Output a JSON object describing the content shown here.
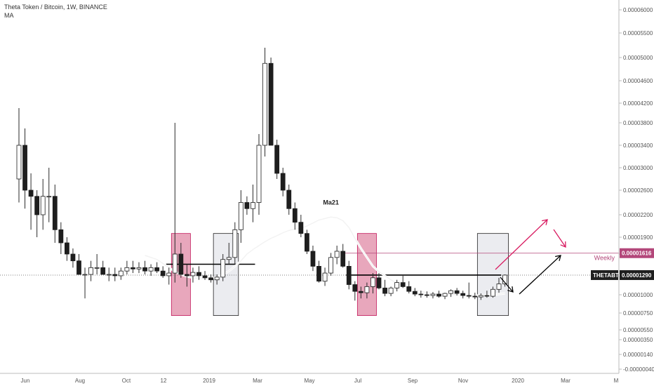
{
  "header": {
    "title": "Theta Token / Bitcoin, 1W, BINANCE",
    "indicator": "MA"
  },
  "chart_data": {
    "type": "candlestick",
    "symbol": "THETABTC",
    "interval": "1W",
    "exchange": "BINANCE",
    "y_scale": "log",
    "y_ticks": [
      "0.00006000",
      "0.00005500",
      "0.00005000",
      "0.00004600",
      "0.00004200",
      "0.00003800",
      "0.00003400",
      "0.00003000",
      "0.00002600",
      "0.00002200",
      "0.00001900",
      "0.00001600",
      "0.00001300",
      "0.00001000",
      "0.00000750",
      "0.00000550",
      "0.00000350",
      "0.00000140",
      "-0.00000040"
    ],
    "y_tick_values": [
      6e-05,
      5.5e-05,
      5e-05,
      4.6e-05,
      4.2e-05,
      3.8e-05,
      3.4e-05,
      3e-05,
      2.6e-05,
      2.2e-05,
      1.9e-05,
      1.6e-05,
      1.3e-05,
      1e-05,
      7.5e-06,
      5.5e-06,
      3.5e-06,
      1.4e-06,
      -4e-07
    ],
    "x_ticks": [
      "Jun",
      "Aug",
      "Oct",
      "12",
      "2019",
      "Mar",
      "May",
      "Jul",
      "Sep",
      "Nov",
      "2020",
      "Mar",
      "M"
    ],
    "candles": [
      [
        2.8e-05,
        4.1e-05,
        2.4e-05,
        3.4e-05
      ],
      [
        3.4e-05,
        3.7e-05,
        2.3e-05,
        2.6e-05
      ],
      [
        2.6e-05,
        2.9e-05,
        2e-05,
        2.5e-05
      ],
      [
        2.5e-05,
        2.6e-05,
        1.9e-05,
        2.2e-05
      ],
      [
        2.2e-05,
        2.8e-05,
        2e-05,
        2.5e-05
      ],
      [
        2.5e-05,
        3e-05,
        2.1e-05,
        2.5e-05
      ],
      [
        2.5e-05,
        2.7e-05,
        1.8e-05,
        2e-05
      ],
      [
        2e-05,
        2.1e-05,
        1.6e-05,
        1.8e-05
      ],
      [
        1.8e-05,
        1.9e-05,
        1.5e-05,
        1.6e-05
      ],
      [
        1.6e-05,
        1.7e-05,
        1.4e-05,
        1.5e-05
      ],
      [
        1.5e-05,
        1.6e-05,
        1.3e-05,
        1.3e-05
      ],
      [
        1.3e-05,
        1.4e-05,
        9.5e-06,
        1.3e-05
      ],
      [
        1.3e-05,
        1.5e-05,
        1.2e-05,
        1.4e-05
      ],
      [
        1.4e-05,
        1.6e-05,
        1.3e-05,
        1.4e-05
      ],
      [
        1.4e-05,
        1.5e-05,
        1.3e-05,
        1.3e-05
      ],
      [
        1.3e-05,
        1.4e-05,
        1.2e-05,
        1.3e-05
      ],
      [
        1.3e-05,
        1.4e-05,
        1.2e-05,
        1.28e-05
      ],
      [
        1.28e-05,
        1.4e-05,
        1.22e-05,
        1.35e-05
      ],
      [
        1.35e-05,
        1.5e-05,
        1.3e-05,
        1.4e-05
      ],
      [
        1.4e-05,
        1.5e-05,
        1.32e-05,
        1.38e-05
      ],
      [
        1.38e-05,
        1.48e-05,
        1.32e-05,
        1.4e-05
      ],
      [
        1.4e-05,
        1.5e-05,
        1.3e-05,
        1.35e-05
      ],
      [
        1.35e-05,
        1.45e-05,
        1.28e-05,
        1.4e-05
      ],
      [
        1.4e-05,
        1.48e-05,
        1.32e-05,
        1.35e-05
      ],
      [
        1.35e-05,
        1.42e-05,
        1.25e-05,
        1.28e-05
      ],
      [
        1.28e-05,
        1.4e-05,
        1.15e-05,
        1.32e-05
      ],
      [
        1.32e-05,
        3.8e-05,
        1.18e-05,
        1.6e-05
      ],
      [
        1.6e-05,
        1.8e-05,
        1.25e-05,
        1.3e-05
      ],
      [
        1.3e-05,
        1.45e-05,
        1.12e-05,
        1.28e-05
      ],
      [
        1.28e-05,
        1.4e-05,
        1.18e-05,
        1.33e-05
      ],
      [
        1.33e-05,
        1.42e-05,
        1.22e-05,
        1.28e-05
      ],
      [
        1.28e-05,
        1.35e-05,
        1.22e-05,
        1.25e-05
      ],
      [
        1.25e-05,
        1.3e-05,
        1.18e-05,
        1.22e-05
      ],
      [
        1.22e-05,
        1.3e-05,
        1.15e-05,
        1.26e-05
      ],
      [
        1.26e-05,
        1.6e-05,
        1.2e-05,
        1.52e-05
      ],
      [
        1.52e-05,
        1.8e-05,
        1.45e-05,
        1.55e-05
      ],
      [
        1.55e-05,
        2.1e-05,
        1.45e-05,
        2e-05
      ],
      [
        2e-05,
        2.6e-05,
        1.8e-05,
        2.4e-05
      ],
      [
        2.4e-05,
        2.5e-05,
        2.2e-05,
        2.3e-05
      ],
      [
        2.3e-05,
        2.7e-05,
        2.1e-05,
        2.4e-05
      ],
      [
        2.4e-05,
        3.6e-05,
        2.2e-05,
        3.4e-05
      ],
      [
        3.4e-05,
        5.2e-05,
        3.2e-05,
        4.9e-05
      ],
      [
        4.9e-05,
        5e-05,
        3.4e-05,
        3.4e-05
      ],
      [
        3.4e-05,
        3.5e-05,
        2.8e-05,
        2.9e-05
      ],
      [
        2.9e-05,
        3e-05,
        2.5e-05,
        2.6e-05
      ],
      [
        2.6e-05,
        2.7e-05,
        2.2e-05,
        2.3e-05
      ],
      [
        2.3e-05,
        2.4e-05,
        2e-05,
        2.1e-05
      ],
      [
        2.1e-05,
        2.2e-05,
        1.9e-05,
        1.95e-05
      ],
      [
        1.95e-05,
        2e-05,
        1.6e-05,
        1.65e-05
      ],
      [
        1.65e-05,
        1.75e-05,
        1.35e-05,
        1.42e-05
      ],
      [
        1.42e-05,
        1.5e-05,
        1.18e-05,
        1.2e-05
      ],
      [
        1.2e-05,
        1.4e-05,
        1.13e-05,
        1.32e-05
      ],
      [
        1.32e-05,
        1.62e-05,
        1.28e-05,
        1.55e-05
      ],
      [
        1.55e-05,
        1.75e-05,
        1.45e-05,
        1.65e-05
      ],
      [
        1.65e-05,
        1.78e-05,
        1.4e-05,
        1.42e-05
      ],
      [
        1.42e-05,
        1.5e-05,
        1.08e-05,
        1.15e-05
      ],
      [
        1.15e-05,
        1.2e-05,
        9.2e-06,
        1.05e-05
      ],
      [
        1.05e-05,
        1.12e-05,
        9.5e-06,
        1.03e-05
      ],
      [
        1.03e-05,
        1.18e-05,
        9.5e-06,
        1.12e-05
      ],
      [
        1.12e-05,
        1.32e-05,
        1.02e-05,
        1.25e-05
      ],
      [
        1.25e-05,
        1.32e-05,
        1.08e-05,
        1.1e-05
      ],
      [
        1.1e-05,
        1.22e-05,
        9.8e-06,
        1.02e-05
      ],
      [
        1.02e-05,
        1.12e-05,
        9.8e-06,
        1.1e-05
      ],
      [
        1.1e-05,
        1.22e-05,
        1.05e-05,
        1.18e-05
      ],
      [
        1.18e-05,
        1.28e-05,
        1.1e-05,
        1.12e-05
      ],
      [
        1.12e-05,
        1.2e-05,
        1.02e-05,
        1.05e-05
      ],
      [
        1.05e-05,
        1.1e-05,
        9.8e-06,
        1.01e-05
      ],
      [
        1.01e-05,
        1.06e-05,
        9.6e-06,
        1e-05
      ],
      [
        1e-05,
        1.05e-05,
        9.6e-06,
        9.9e-06
      ],
      [
        9.9e-06,
        1.04e-05,
        9.5e-06,
        1.01e-05
      ],
      [
        1.01e-05,
        1.06e-05,
        9.6e-06,
        9.8e-06
      ],
      [
        9.8e-06,
        1.03e-05,
        9.4e-06,
        1.02e-05
      ],
      [
        1.02e-05,
        1.08e-05,
        9.7e-06,
        1.06e-05
      ],
      [
        1.06e-05,
        1.1e-05,
        9.9e-06,
        1.02e-05
      ],
      [
        1.02e-05,
        1.06e-05,
        9.5e-06,
        9.9e-06
      ],
      [
        9.9e-06,
        1.18e-05,
        9.5e-06,
        9.8e-06
      ],
      [
        9.8e-06,
        1.03e-05,
        9.4e-06,
        9.7e-06
      ],
      [
        9.7e-06,
        1.02e-05,
        9.3e-06,
        9.9e-06
      ],
      [
        9.9e-06,
        1.06e-05,
        9.6e-06,
        9.8e-06
      ],
      [
        9.8e-06,
        1.12e-05,
        9.6e-06,
        1.08e-05
      ],
      [
        1.08e-05,
        1.25e-05,
        1.03e-05,
        1.16e-05
      ],
      [
        1.16e-05,
        1.3e-05,
        1.12e-05,
        1.29e-05
      ]
    ],
    "ma21": [
      null,
      null,
      null,
      null,
      null,
      null,
      null,
      null,
      null,
      null,
      null,
      null,
      null,
      null,
      null,
      null,
      null,
      null,
      null,
      null,
      null,
      1.58e-05,
      1.55e-05,
      1.52e-05,
      1.46e-05,
      1.4e-05,
      1.34e-05,
      1.3e-05,
      1.27e-05,
      1.25e-05,
      1.24e-05,
      1.23e-05,
      1.24e-05,
      1.26e-05,
      1.3e-05,
      1.35e-05,
      1.42e-05,
      1.5e-05,
      1.6e-05,
      1.68e-05,
      1.75e-05,
      1.82e-05,
      1.88e-05,
      1.92e-05,
      1.96e-05,
      1.99e-05,
      2.01e-05,
      2.02e-05,
      2.05e-05,
      2.09e-05,
      2.13e-05,
      2.15e-05,
      2.17e-05,
      2.16e-05,
      2.12e-05,
      2.03e-05,
      1.88e-05,
      1.7e-05,
      1.55e-05,
      1.42e-05,
      1.34e-05,
      1.28e-05,
      1.22e-05,
      1.17e-05,
      1.13e-05,
      1.1e-05,
      1.07e-05,
      1.05e-05,
      1.03e-05,
      1.02e-05,
      1.01e-05,
      1e-05,
      1e-05,
      1e-05,
      9.9e-06,
      9.9e-06,
      9.9e-06,
      9.9e-06,
      9.9e-06,
      1e-05,
      1.01e-05,
      1.02e-05
    ],
    "ma_label": "Ma21",
    "weekly_level": 1.616e-05,
    "weekly_label": "Weekly",
    "weekly_price": "0.00001616",
    "current_symbol": "THETABTC",
    "current_price": "0.00001290",
    "current_value": 1.29e-05,
    "annotation_boxes": [
      {
        "color": "pink",
        "from": 26,
        "to": 28,
        "top": 1.95e-05,
        "bottom": 7.2e-06
      },
      {
        "color": "gray",
        "from": 33,
        "to": 36,
        "top": 1.95e-05,
        "bottom": 7.2e-06
      },
      {
        "color": "pink",
        "from": 57,
        "to": 59,
        "top": 1.95e-05,
        "bottom": 7.2e-06
      },
      {
        "color": "gray",
        "from": 77,
        "to": 81,
        "top": 1.95e-05,
        "bottom": 7.2e-06
      }
    ],
    "hlines": [
      {
        "value": 1.45e-05,
        "from": 25,
        "to": 39
      },
      {
        "value": 1.29e-05,
        "from": 55,
        "to": 80
      }
    ],
    "colors": {
      "up_fill": "#ffffff",
      "down_fill": "#1e1e1e",
      "wick": "#2a2a2a",
      "pink_box": "#e08aa5",
      "gray_box": "#dde0e6",
      "weekly": "#b3477a",
      "arrow_pink": "#d81b60",
      "arrow_black": "#000000",
      "axis_text": "#555555"
    }
  }
}
